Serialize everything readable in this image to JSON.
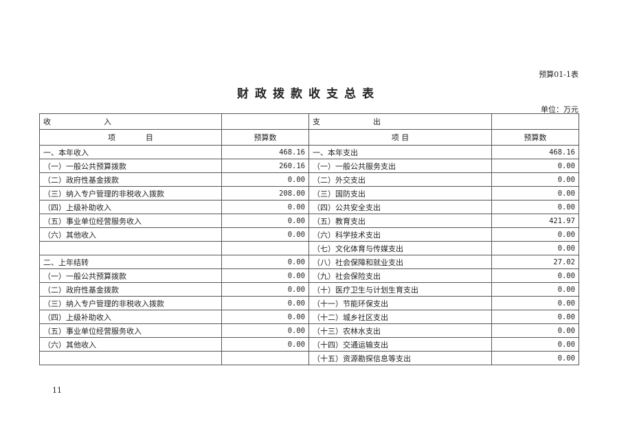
{
  "form_no": "预算01-1表",
  "title": "财政拨款收支总表",
  "unit": "单位：万元",
  "header": {
    "income": "收　　　　　　　入",
    "expense": "支　　　　　　　出",
    "item": "项　　　　目",
    "item2": "项 目",
    "budget": "预算数"
  },
  "rows": [
    {
      "li": "一、本年收入",
      "lv": "468.16",
      "ri": "一、本年支出",
      "rv": "468.16"
    },
    {
      "li": "（一）一般公共预算拨款",
      "lv": "260.16",
      "ri": "（一）一般公共服务支出",
      "rv": "0.00"
    },
    {
      "li": "（二）政府性基金拨款",
      "lv": "0.00",
      "ri": "（二）外交支出",
      "rv": "0.00"
    },
    {
      "li": "（三）纳入专户管理的非税收入拨款",
      "lv": "208.00",
      "ri": "（三）国防支出",
      "rv": "0.00"
    },
    {
      "li": "（四）上级补助收入",
      "lv": "0.00",
      "ri": "（四）公共安全支出",
      "rv": "0.00"
    },
    {
      "li": "（五）事业单位经营服务收入",
      "lv": "0.00",
      "ri": "（五）教育支出",
      "rv": "421.97"
    },
    {
      "li": "（六）其他收入",
      "lv": "0.00",
      "ri": "（六）科学技术支出",
      "rv": "0.00"
    },
    {
      "li": "",
      "lv": "",
      "ri": "（七）文化体育与传媒支出",
      "rv": "0.00"
    },
    {
      "li": "二、上年结转",
      "lv": "0.00",
      "ri": "（八）社会保障和就业支出",
      "rv": "27.02"
    },
    {
      "li": "（一）一般公共预算拨款",
      "lv": "0.00",
      "ri": "（九）社会保险支出",
      "rv": "0.00"
    },
    {
      "li": "（二）政府性基金拨款",
      "lv": "0.00",
      "ri": "（十）医疗卫生与计划生育支出",
      "rv": "0.00"
    },
    {
      "li": "（三）纳入专户管理的非税收入拨款",
      "lv": "0.00",
      "ri": "（十一）节能环保支出",
      "rv": "0.00"
    },
    {
      "li": "（四）上级补助收入",
      "lv": "0.00",
      "ri": "（十二）城乡社区支出",
      "rv": "0.00"
    },
    {
      "li": "（五）事业单位经营服务收入",
      "lv": "0.00",
      "ri": "（十三）农林水支出",
      "rv": "0.00"
    },
    {
      "li": "（六）其他收入",
      "lv": "0.00",
      "ri": "（十四）交通运输支出",
      "rv": "0.00"
    },
    {
      "li": "",
      "lv": "",
      "ri": "（十五）资源勘探信息等支出",
      "rv": "0.00"
    }
  ],
  "page_number": "11"
}
